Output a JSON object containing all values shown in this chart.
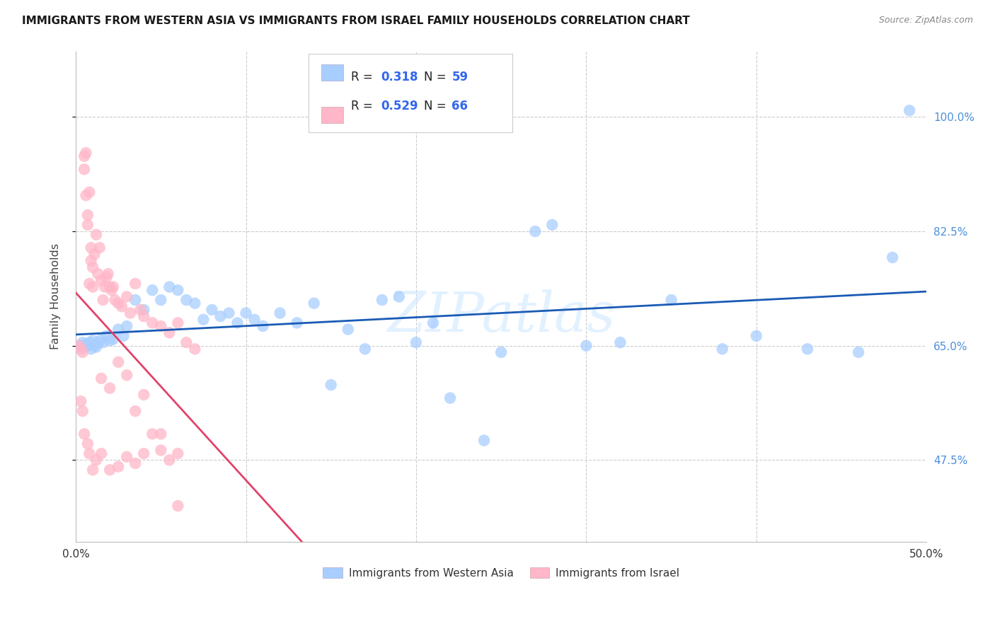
{
  "title": "IMMIGRANTS FROM WESTERN ASIA VS IMMIGRANTS FROM ISRAEL FAMILY HOUSEHOLDS CORRELATION CHART",
  "source": "Source: ZipAtlas.com",
  "ylabel_label": "Family Households",
  "legend_label_blue": "Immigrants from Western Asia",
  "legend_label_pink": "Immigrants from Israel",
  "watermark": "ZIPatlas",
  "blue_color": "#A8CEFF",
  "blue_line_color": "#1a5bb5",
  "pink_color": "#FFB6C8",
  "pink_line_color": "#e0436a",
  "ytick_color": "#4d8fdb",
  "xtick_color": "#333333",
  "xlim": [
    0,
    50
  ],
  "ylim": [
    35,
    110
  ],
  "yticks": [
    47.5,
    65.0,
    82.5,
    100.0
  ],
  "ytick_labels": [
    "47.5%",
    "65.0%",
    "82.5%",
    "100.0%"
  ],
  "xticks": [
    0,
    10,
    20,
    30,
    40,
    50
  ],
  "xtick_labels": [
    "0.0%",
    "",
    "",
    "",
    "",
    "50.0%"
  ],
  "blue_r": "0.318",
  "blue_n": "59",
  "pink_r": "0.529",
  "pink_n": "66",
  "blue_scatter_x": [
    0.3,
    0.4,
    0.5,
    0.6,
    0.7,
    0.8,
    0.9,
    1.0,
    1.1,
    1.2,
    1.3,
    1.5,
    1.6,
    1.8,
    2.0,
    2.2,
    2.5,
    2.8,
    3.0,
    3.5,
    4.0,
    4.5,
    5.0,
    5.5,
    6.0,
    6.5,
    7.0,
    7.5,
    8.0,
    8.5,
    9.0,
    9.5,
    10.0,
    10.5,
    11.0,
    12.0,
    13.0,
    14.0,
    15.0,
    16.0,
    17.0,
    18.0,
    19.0,
    20.0,
    21.0,
    22.0,
    24.0,
    25.0,
    27.0,
    28.0,
    30.0,
    32.0,
    35.0,
    38.0,
    40.0,
    43.0,
    46.0,
    48.0,
    49.0
  ],
  "blue_scatter_y": [
    65.0,
    65.5,
    64.8,
    65.2,
    65.0,
    65.5,
    64.5,
    65.8,
    65.0,
    64.8,
    65.5,
    66.0,
    65.5,
    66.5,
    65.8,
    66.0,
    67.5,
    66.5,
    68.0,
    72.0,
    70.5,
    73.5,
    72.0,
    74.0,
    73.5,
    72.0,
    71.5,
    69.0,
    70.5,
    69.5,
    70.0,
    68.5,
    70.0,
    69.0,
    68.0,
    70.0,
    68.5,
    71.5,
    59.0,
    67.5,
    64.5,
    72.0,
    72.5,
    65.5,
    68.5,
    57.0,
    50.5,
    64.0,
    82.5,
    83.5,
    65.0,
    65.5,
    72.0,
    64.5,
    66.5,
    64.5,
    64.0,
    78.5,
    101.0
  ],
  "pink_scatter_x": [
    0.2,
    0.3,
    0.4,
    0.5,
    0.5,
    0.6,
    0.6,
    0.7,
    0.7,
    0.8,
    0.8,
    0.9,
    0.9,
    1.0,
    1.0,
    1.1,
    1.2,
    1.3,
    1.4,
    1.5,
    1.6,
    1.7,
    1.8,
    1.9,
    2.0,
    2.1,
    2.2,
    2.3,
    2.5,
    2.7,
    3.0,
    3.2,
    3.5,
    3.8,
    4.0,
    4.5,
    5.0,
    5.5,
    6.0,
    6.5,
    7.0,
    0.3,
    0.4,
    0.5,
    0.7,
    0.8,
    1.0,
    1.2,
    1.5,
    2.0,
    2.5,
    3.0,
    3.5,
    4.0,
    5.0,
    6.0,
    1.5,
    2.0,
    2.5,
    3.0,
    3.5,
    4.0,
    4.5,
    5.0,
    5.5,
    6.0
  ],
  "pink_scatter_y": [
    65.0,
    64.5,
    64.0,
    92.0,
    94.0,
    94.5,
    88.0,
    83.5,
    85.0,
    88.5,
    74.5,
    80.0,
    78.0,
    74.0,
    77.0,
    79.0,
    82.0,
    76.0,
    80.0,
    75.0,
    72.0,
    74.0,
    75.5,
    76.0,
    74.0,
    73.5,
    74.0,
    72.0,
    71.5,
    71.0,
    72.5,
    70.0,
    74.5,
    70.5,
    69.5,
    68.5,
    68.0,
    67.0,
    68.5,
    65.5,
    64.5,
    56.5,
    55.0,
    51.5,
    50.0,
    48.5,
    46.0,
    47.5,
    48.5,
    46.0,
    46.5,
    48.0,
    47.0,
    48.5,
    51.5,
    40.5,
    60.0,
    58.5,
    62.5,
    60.5,
    55.0,
    57.5,
    51.5,
    49.0,
    47.5,
    48.5
  ]
}
